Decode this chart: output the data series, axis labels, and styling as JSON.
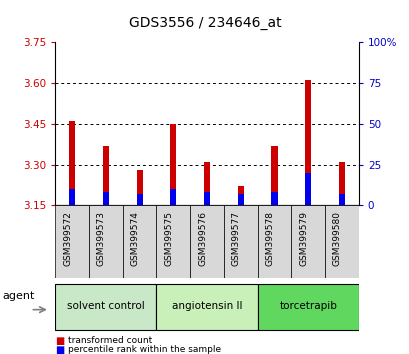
{
  "title": "GDS3556 / 234646_at",
  "samples": [
    "GSM399572",
    "GSM399573",
    "GSM399574",
    "GSM399575",
    "GSM399576",
    "GSM399577",
    "GSM399578",
    "GSM399579",
    "GSM399580"
  ],
  "red_values": [
    3.46,
    3.37,
    3.28,
    3.45,
    3.31,
    3.22,
    3.37,
    3.61,
    3.31
  ],
  "blue_values": [
    3.21,
    3.2,
    3.19,
    3.21,
    3.2,
    3.19,
    3.2,
    3.27,
    3.19
  ],
  "baseline": 3.15,
  "ylim": [
    3.15,
    3.75
  ],
  "yticks_left": [
    3.15,
    3.3,
    3.45,
    3.6,
    3.75
  ],
  "yticks_right": [
    0,
    25,
    50,
    75,
    100
  ],
  "yticks_right_labels": [
    "0",
    "25",
    "50",
    "75",
    "100%"
  ],
  "grid_lines": [
    3.3,
    3.45,
    3.6
  ],
  "agents": [
    {
      "label": "solvent control",
      "samples": [
        0,
        1,
        2
      ],
      "color": "#c8e8c8"
    },
    {
      "label": "angiotensin II",
      "samples": [
        3,
        4,
        5
      ],
      "color": "#c8f0b8"
    },
    {
      "label": "torcetrapib",
      "samples": [
        6,
        7,
        8
      ],
      "color": "#60d860"
    }
  ],
  "bar_width": 0.18,
  "red_color": "#cc0000",
  "blue_color": "#0000ee",
  "legend_red": "transformed count",
  "legend_blue": "percentile rank within the sample",
  "agent_label": "agent",
  "left_tick_color": "#cc0000",
  "right_tick_color": "#0000cc",
  "title_fontsize": 10,
  "tick_fontsize": 7.5,
  "label_fontsize": 8,
  "sample_label_fontsize": 6.5,
  "agent_fontsize": 7.5,
  "legend_fontsize": 6.5
}
